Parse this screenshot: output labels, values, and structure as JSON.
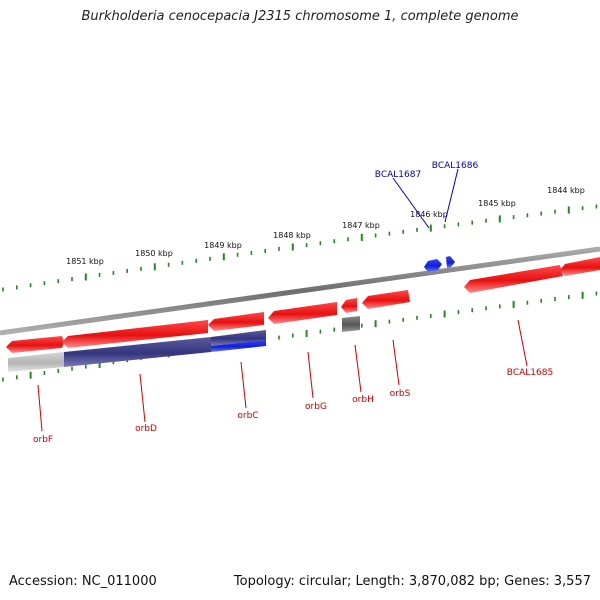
{
  "title": "Burkholderia cenocepacia J2315 chromosome 1, complete genome",
  "footer": {
    "accession": "Accession: NC_011000",
    "summary": "Topology: circular; Length: 3,870,082 bp; Genes: 3,557"
  },
  "colors": {
    "forward_gene": "#ee1111",
    "reverse_gene_blue": "#1122dd",
    "reverse_gene_navy": "#3a3a88",
    "reverse_gene_gray": "#bbbbbb",
    "small_gray_gene": "#666666",
    "backbone": "#888888",
    "ticks": "#228822",
    "label_red": "#cc0000",
    "label_blue": "#0000bb"
  },
  "scale_labels": [
    "1851 kbp",
    "1850 kbp",
    "1849 kbp",
    "1848 kbp",
    "1847 kbp",
    "1846 kbp",
    "1845 kbp",
    "1844 kbp"
  ],
  "gene_labels": {
    "top": [
      "BCAL1687",
      "BCAL1686"
    ],
    "bottom": [
      "orbF",
      "orbD",
      "orbC",
      "orbG",
      "orbH",
      "orbS",
      "BCAL1685"
    ]
  }
}
